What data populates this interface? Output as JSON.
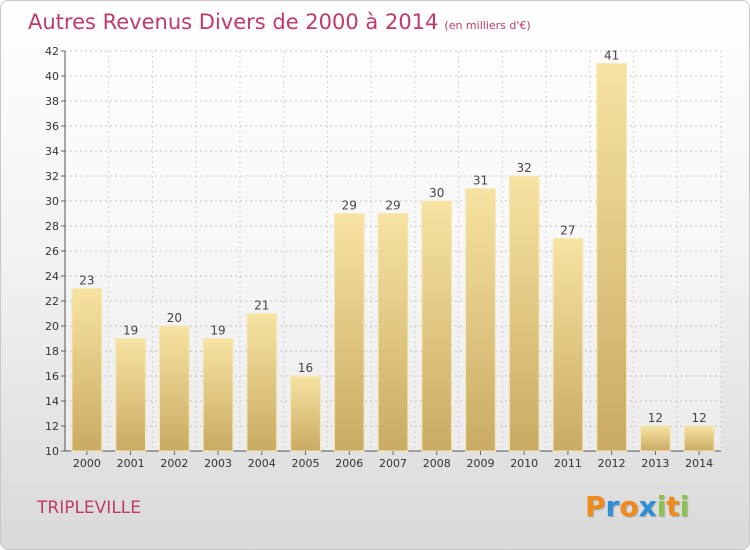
{
  "chart_data": {
    "type": "bar",
    "title": "Autres Revenus Divers de 2000 à 2014",
    "subtitle": "(en milliers d'€)",
    "categories": [
      "2000",
      "2001",
      "2002",
      "2003",
      "2004",
      "2005",
      "2006",
      "2007",
      "2008",
      "2009",
      "2010",
      "2011",
      "2012",
      "2013",
      "2014"
    ],
    "values": [
      23,
      19,
      20,
      19,
      21,
      16,
      29,
      29,
      30,
      31,
      32,
      27,
      41,
      12,
      12
    ],
    "ylim": [
      10,
      42
    ],
    "yticks": [
      10,
      12,
      14,
      16,
      18,
      20,
      22,
      24,
      26,
      28,
      30,
      32,
      34,
      36,
      38,
      40,
      42
    ],
    "ytick_labels": [
      "10",
      "12",
      "14",
      "16",
      "18",
      "20",
      "22",
      "24",
      "26",
      "28",
      "30",
      "32",
      "34",
      "36",
      "38",
      "40",
      "42"
    ],
    "grid": true,
    "bar_color": "#e6cf8a"
  },
  "commune": "TRIPLEVILLE",
  "logo": {
    "letters": [
      "P",
      "r",
      "o",
      "x",
      "i",
      "t",
      "i"
    ],
    "colors": [
      "#f08a1c",
      "#2f8fd6",
      "#f08a1c",
      "#2f8fd6",
      "#8bc34a",
      "#f08a1c",
      "#8bc34a"
    ]
  }
}
